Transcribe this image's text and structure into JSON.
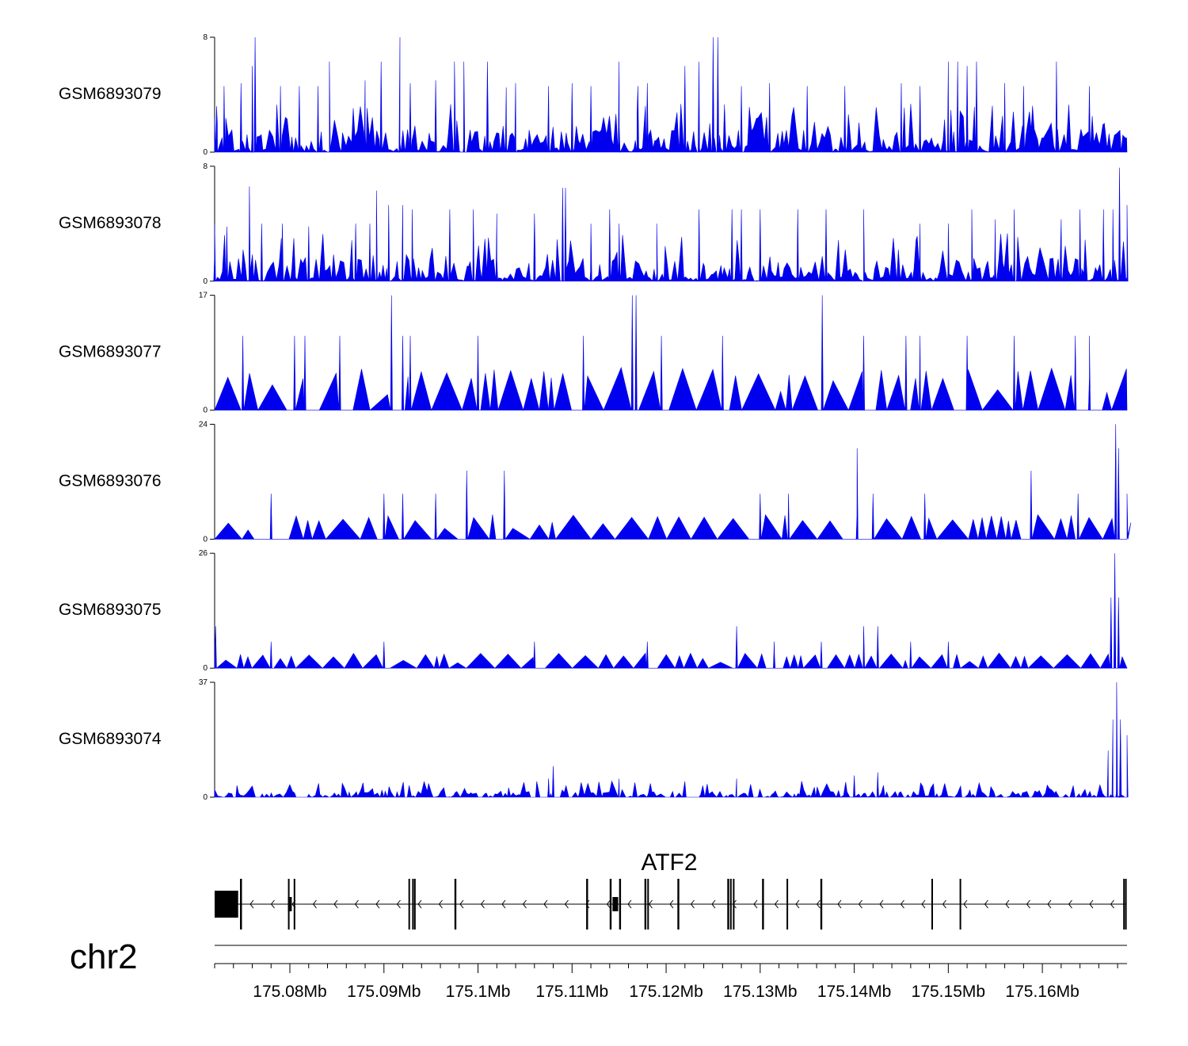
{
  "chart_data": {
    "type": "area",
    "title": "",
    "xlabel": "",
    "ylabel": "",
    "region": {
      "chromosome": "chr2",
      "xlim_bp": [
        175072000,
        175169000
      ],
      "gene": "ATF2",
      "strand": "-"
    },
    "fill_color": "#0000ee",
    "tracks": [
      {
        "name": "GSM6893079",
        "ylim": [
          0,
          8
        ],
        "ylim_labels": [
          "0",
          "8"
        ],
        "baseline": 0.3,
        "typical_peak": 1.3,
        "tall_peaks": [
          [
            175072200,
            3.2
          ],
          [
            175073000,
            4.6
          ],
          [
            175074800,
            4.8
          ],
          [
            175076000,
            6.0
          ],
          [
            175076300,
            8.0
          ],
          [
            175079000,
            4.6
          ],
          [
            175081000,
            4.6
          ],
          [
            175083000,
            4.6
          ],
          [
            175084200,
            6.3
          ],
          [
            175088000,
            5.0
          ],
          [
            175089700,
            6.3
          ],
          [
            175091700,
            8.0
          ],
          [
            175092800,
            4.8
          ],
          [
            175095500,
            5.0
          ],
          [
            175097500,
            6.3
          ],
          [
            175098500,
            6.3
          ],
          [
            175101000,
            6.3
          ],
          [
            175103000,
            4.5
          ],
          [
            175104000,
            4.8
          ],
          [
            175107500,
            4.6
          ],
          [
            175110000,
            4.8
          ],
          [
            175112000,
            4.6
          ],
          [
            175115000,
            6.3
          ],
          [
            175117000,
            4.6
          ],
          [
            175118000,
            4.8
          ],
          [
            175122000,
            6.0
          ],
          [
            175123500,
            6.3
          ],
          [
            175125000,
            8.0
          ],
          [
            175125500,
            8.0
          ],
          [
            175128000,
            4.6
          ],
          [
            175131000,
            4.8
          ],
          [
            175135000,
            4.6
          ],
          [
            175139000,
            4.6
          ],
          [
            175145000,
            4.8
          ],
          [
            175147000,
            4.6
          ],
          [
            175150000,
            6.3
          ],
          [
            175151000,
            6.3
          ],
          [
            175152000,
            6.0
          ],
          [
            175153000,
            6.3
          ],
          [
            175156000,
            4.8
          ],
          [
            175158000,
            4.6
          ],
          [
            175161500,
            6.3
          ],
          [
            175165000,
            4.6
          ]
        ]
      },
      {
        "name": "GSM6893078",
        "ylim": [
          0,
          8
        ],
        "ylim_labels": [
          "0",
          "8"
        ],
        "baseline": 0.3,
        "typical_peak": 1.3,
        "tall_peaks": [
          [
            175072000,
            4.0
          ],
          [
            175073300,
            3.8
          ],
          [
            175075700,
            6.6
          ],
          [
            175077000,
            4.0
          ],
          [
            175079200,
            4.0
          ],
          [
            175082000,
            3.8
          ],
          [
            175087000,
            4.0
          ],
          [
            175088500,
            4.0
          ],
          [
            175089200,
            6.3
          ],
          [
            175090500,
            5.3
          ],
          [
            175092000,
            5.3
          ],
          [
            175093000,
            5.0
          ],
          [
            175097000,
            5.0
          ],
          [
            175099500,
            5.0
          ],
          [
            175102000,
            4.7
          ],
          [
            175106000,
            4.7
          ],
          [
            175109000,
            6.5
          ],
          [
            175109300,
            6.5
          ],
          [
            175112000,
            4.0
          ],
          [
            175114000,
            5.0
          ],
          [
            175115000,
            4.0
          ],
          [
            175119000,
            4.0
          ],
          [
            175123500,
            5.0
          ],
          [
            175127000,
            5.0
          ],
          [
            175128000,
            5.0
          ],
          [
            175130000,
            5.0
          ],
          [
            175134000,
            5.0
          ],
          [
            175137000,
            5.0
          ],
          [
            175141000,
            5.0
          ],
          [
            175147000,
            4.0
          ],
          [
            175150000,
            4.0
          ],
          [
            175152500,
            5.0
          ],
          [
            175155000,
            4.3
          ],
          [
            175157000,
            5.0
          ],
          [
            175162000,
            4.3
          ],
          [
            175164000,
            5.0
          ],
          [
            175166500,
            5.0
          ],
          [
            175167500,
            5.0
          ],
          [
            175168200,
            7.9
          ],
          [
            175169000,
            5.3
          ]
        ]
      },
      {
        "name": "GSM6893077",
        "ylim": [
          0,
          17
        ],
        "ylim_labels": [
          "0",
          "17"
        ],
        "baseline": 0,
        "typical_peak": 5.5,
        "tall_peaks": [
          [
            175075000,
            11.0
          ],
          [
            175080500,
            11.0
          ],
          [
            175081600,
            11.0
          ],
          [
            175085300,
            11.0
          ],
          [
            175090800,
            17.0
          ],
          [
            175092000,
            11.0
          ],
          [
            175092800,
            11.0
          ],
          [
            175100000,
            11.0
          ],
          [
            175111200,
            11.0
          ],
          [
            175116400,
            17.0
          ],
          [
            175116800,
            17.0
          ],
          [
            175119500,
            11.0
          ],
          [
            175126000,
            11.0
          ],
          [
            175136600,
            17.0
          ],
          [
            175141000,
            11.0
          ],
          [
            175145500,
            11.0
          ],
          [
            175147000,
            11.0
          ],
          [
            175152000,
            11.0
          ],
          [
            175157000,
            11.0
          ],
          [
            175163500,
            11.0
          ],
          [
            175165000,
            11.0
          ]
        ]
      },
      {
        "name": "GSM6893076",
        "ylim": [
          0,
          24
        ],
        "ylim_labels": [
          "0",
          "24"
        ],
        "baseline": 0,
        "typical_peak": 4.5,
        "tall_peaks": [
          [
            175078000,
            9.5
          ],
          [
            175090000,
            9.5
          ],
          [
            175092000,
            9.5
          ],
          [
            175095500,
            9.5
          ],
          [
            175098800,
            14.3
          ],
          [
            175102800,
            14.3
          ],
          [
            175130000,
            9.5
          ],
          [
            175133000,
            9.5
          ],
          [
            175140300,
            19.0
          ],
          [
            175142000,
            9.5
          ],
          [
            175147500,
            9.5
          ],
          [
            175158800,
            14.3
          ],
          [
            175163800,
            9.5
          ],
          [
            175167800,
            24.0
          ],
          [
            175168100,
            19.0
          ],
          [
            175169000,
            9.5
          ]
        ]
      },
      {
        "name": "GSM6893075",
        "ylim": [
          0,
          26
        ],
        "ylim_labels": [
          "0",
          "26"
        ],
        "baseline": 0,
        "typical_peak": 3.0,
        "tall_peaks": [
          [
            175072100,
            9.5
          ],
          [
            175078000,
            6.0
          ],
          [
            175090000,
            6.0
          ],
          [
            175106000,
            6.0
          ],
          [
            175118000,
            6.0
          ],
          [
            175127500,
            9.5
          ],
          [
            175131500,
            6.0
          ],
          [
            175136500,
            6.0
          ],
          [
            175141000,
            9.5
          ],
          [
            175142500,
            9.5
          ],
          [
            175146000,
            6.0
          ],
          [
            175150000,
            6.0
          ],
          [
            175167300,
            16.0
          ],
          [
            175167700,
            26.0
          ],
          [
            175168100,
            16.0
          ]
        ]
      },
      {
        "name": "GSM6893074",
        "ylim": [
          0,
          37
        ],
        "ylim_labels": [
          "0",
          "37"
        ],
        "baseline": 0,
        "typical_peak": 2.0,
        "tall_peaks": [
          [
            175107500,
            6.0
          ],
          [
            175108000,
            10.0
          ],
          [
            175115000,
            6.0
          ],
          [
            175127500,
            6.0
          ],
          [
            175140000,
            7.0
          ],
          [
            175142500,
            8.0
          ],
          [
            175167000,
            15.0
          ],
          [
            175167500,
            25.0
          ],
          [
            175167900,
            37.0
          ],
          [
            175168300,
            25.0
          ],
          [
            175169000,
            20.0
          ]
        ]
      }
    ],
    "gene_model": {
      "name": "ATF2",
      "exons_bp": [
        [
          175072000,
          175074500
        ],
        [
          175074700,
          175074900
        ],
        [
          175079800,
          175080200
        ],
        [
          175080400,
          175080500
        ],
        [
          175092600,
          175092700
        ],
        [
          175093000,
          175093100
        ],
        [
          175093200,
          175093300
        ],
        [
          175097500,
          175097700
        ],
        [
          175111500,
          175111700
        ],
        [
          175114000,
          175114200
        ],
        [
          175114300,
          175114900
        ],
        [
          175115000,
          175115200
        ],
        [
          175117700,
          175117900
        ],
        [
          175118000,
          175118100
        ],
        [
          175121200,
          175121400
        ],
        [
          175126500,
          175126700
        ],
        [
          175126800,
          175126900
        ],
        [
          175127100,
          175127200
        ],
        [
          175130200,
          175130400
        ],
        [
          175132800,
          175132900
        ],
        [
          175136400,
          175136600
        ],
        [
          175148200,
          175148300
        ],
        [
          175151200,
          175151300
        ],
        [
          175168600,
          175168700
        ],
        [
          175168800,
          175168900
        ]
      ]
    },
    "axis": {
      "ticks_bp": [
        175080000,
        175090000,
        175100000,
        175110000,
        175120000,
        175130000,
        175140000,
        175150000,
        175160000
      ],
      "tick_labels": [
        "175.08Mb",
        "175.09Mb",
        "175.1Mb",
        "175.11Mb",
        "175.12Mb",
        "175.13Mb",
        "175.14Mb",
        "175.15Mb",
        "175.16Mb"
      ],
      "minor_tick_step_bp": 2000
    },
    "legend": "none",
    "grid": false
  }
}
